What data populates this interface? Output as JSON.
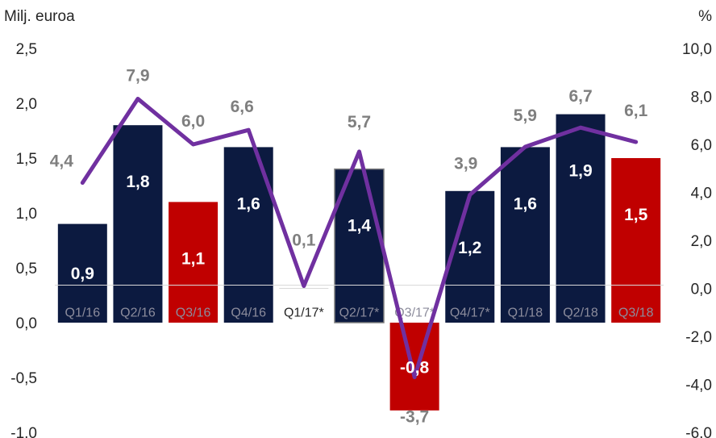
{
  "chart_data": {
    "type": "bar",
    "title": "",
    "ylabel_left": "Milj. euroa",
    "ylabel_right": "%",
    "categories": [
      "Q1/16",
      "Q2/16",
      "Q3/16",
      "Q4/16",
      "Q1/17*",
      "Q2/17*",
      "Q3/17*",
      "Q4/17*",
      "Q1/18",
      "Q2/18",
      "Q3/18"
    ],
    "ylim_left": [
      -1.0,
      2.5
    ],
    "yticks_left": [
      "-1,0",
      "-0,5",
      "0,0",
      "0,5",
      "1,0",
      "1,5",
      "2,0",
      "2,5"
    ],
    "ylim_right": [
      -6.0,
      10.0
    ],
    "yticks_right": [
      "-6,0",
      "-4,0",
      "-2,0",
      "0,0",
      "2,0",
      "4,0",
      "6,0",
      "8,0",
      "10,0"
    ],
    "series": [
      {
        "kind": "bar",
        "axis": "left",
        "values": [
          0.9,
          1.8,
          1.1,
          1.6,
          null,
          1.4,
          -0.8,
          1.2,
          1.6,
          1.9,
          1.5
        ],
        "labels": [
          "0,9",
          "1,8",
          "1,1",
          "1,6",
          "",
          "1,4",
          "-0,8",
          "1,2",
          "1,6",
          "1,9",
          "1,5"
        ],
        "colors": [
          "#0c1a40",
          "#0c1a40",
          "#c00000",
          "#0c1a40",
          "#0c1a40",
          "#0c1a40",
          "#c00000",
          "#0c1a40",
          "#0c1a40",
          "#0c1a40",
          "#c00000"
        ]
      },
      {
        "kind": "line",
        "axis": "right",
        "color": "#7030a0",
        "values": [
          4.4,
          7.9,
          6.0,
          6.6,
          0.1,
          5.7,
          -3.7,
          3.9,
          5.9,
          6.7,
          6.1
        ],
        "labels": [
          "4,4",
          "7,9",
          "6,0",
          "6,6",
          "0,1",
          "5,7",
          "-3,7",
          "3,9",
          "5,9",
          "6,7",
          "6,1"
        ]
      }
    ],
    "colors": {
      "navy": "#0c1a40",
      "red": "#c00000",
      "line": "#7030a0",
      "line_label": "#7f7f7f"
    },
    "grid": false,
    "legend": "none"
  }
}
